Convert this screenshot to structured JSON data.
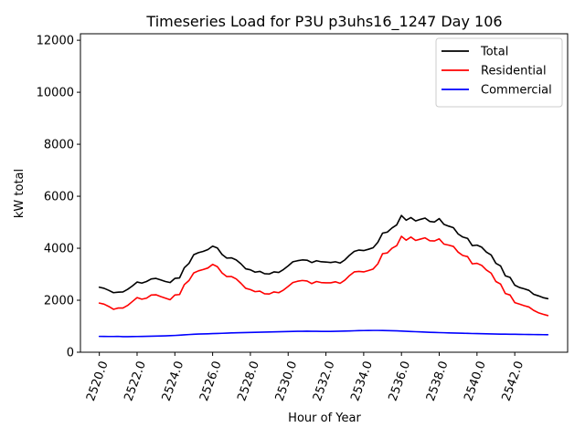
{
  "chart_data": {
    "type": "line",
    "title": "Timeseries Load for P3U p3uhs16_1247  Day 106",
    "xlabel": "Hour of Year",
    "ylabel": "kW total",
    "xlim": [
      2519,
      2544.8
    ],
    "ylim": [
      0,
      12250
    ],
    "xticks": [
      2520,
      2522,
      2524,
      2526,
      2528,
      2530,
      2532,
      2534,
      2536,
      2538,
      2540,
      2542
    ],
    "xtick_labels": [
      "2520.0",
      "2522.0",
      "2524.0",
      "2526.0",
      "2528.0",
      "2530.0",
      "2532.0",
      "2534.0",
      "2536.0",
      "2538.0",
      "2540.0",
      "2542.0"
    ],
    "yticks": [
      0,
      2000,
      4000,
      6000,
      8000,
      10000,
      12000
    ],
    "ytick_labels": [
      "0",
      "2000",
      "4000",
      "6000",
      "8000",
      "10000",
      "12000"
    ],
    "legend_position": "top-right",
    "grid": false,
    "x": [
      2520.0,
      2520.25,
      2520.5,
      2520.75,
      2521.0,
      2521.25,
      2521.5,
      2521.75,
      2522.0,
      2522.25,
      2522.5,
      2522.75,
      2523.0,
      2523.25,
      2523.5,
      2523.75,
      2524.0,
      2524.25,
      2524.5,
      2524.75,
      2525.0,
      2525.25,
      2525.5,
      2525.75,
      2526.0,
      2526.25,
      2526.5,
      2526.75,
      2527.0,
      2527.25,
      2527.5,
      2527.75,
      2528.0,
      2528.25,
      2528.5,
      2528.75,
      2529.0,
      2529.25,
      2529.5,
      2529.75,
      2530.0,
      2530.25,
      2530.5,
      2530.75,
      2531.0,
      2531.25,
      2531.5,
      2531.75,
      2532.0,
      2532.25,
      2532.5,
      2532.75,
      2533.0,
      2533.25,
      2533.5,
      2533.75,
      2534.0,
      2534.25,
      2534.5,
      2534.75,
      2535.0,
      2535.25,
      2535.5,
      2535.75,
      2536.0,
      2536.25,
      2536.5,
      2536.75,
      2537.0,
      2537.25,
      2537.5,
      2537.75,
      2538.0,
      2538.25,
      2538.5,
      2538.75,
      2539.0,
      2539.25,
      2539.5,
      2539.75,
      2540.0,
      2540.25,
      2540.5,
      2540.75,
      2541.0,
      2541.25,
      2541.5,
      2541.75,
      2542.0,
      2542.25,
      2542.5,
      2542.75,
      2543.0,
      2543.25,
      2543.5,
      2543.75
    ],
    "series": [
      {
        "name": "Total",
        "color": "#000000",
        "values": [
          2500,
          2460,
          2380,
          2290,
          2310,
          2320,
          2420,
          2550,
          2700,
          2660,
          2720,
          2820,
          2840,
          2780,
          2720,
          2680,
          2840,
          2860,
          3250,
          3420,
          3750,
          3830,
          3880,
          3950,
          4080,
          4010,
          3760,
          3620,
          3630,
          3550,
          3400,
          3210,
          3170,
          3080,
          3110,
          3020,
          3010,
          3090,
          3070,
          3180,
          3320,
          3480,
          3520,
          3550,
          3540,
          3450,
          3520,
          3480,
          3470,
          3450,
          3480,
          3430,
          3550,
          3730,
          3880,
          3930,
          3910,
          3960,
          4020,
          4230,
          4580,
          4620,
          4780,
          4900,
          5260,
          5080,
          5180,
          5050,
          5110,
          5160,
          5030,
          5010,
          5140,
          4920,
          4850,
          4790,
          4550,
          4430,
          4380,
          4100,
          4120,
          4040,
          3850,
          3740,
          3420,
          3320,
          2940,
          2880,
          2580,
          2490,
          2440,
          2380,
          2230,
          2170,
          2100,
          2060
        ]
      },
      {
        "name": "Residential",
        "color": "#ff0000",
        "values": [
          1890,
          1850,
          1760,
          1650,
          1700,
          1700,
          1800,
          1950,
          2100,
          2040,
          2080,
          2200,
          2210,
          2140,
          2080,
          2020,
          2200,
          2220,
          2600,
          2760,
          3050,
          3130,
          3180,
          3240,
          3380,
          3290,
          3050,
          2910,
          2910,
          2820,
          2650,
          2460,
          2410,
          2330,
          2350,
          2250,
          2240,
          2320,
          2290,
          2390,
          2530,
          2680,
          2730,
          2760,
          2740,
          2640,
          2720,
          2680,
          2670,
          2670,
          2710,
          2650,
          2770,
          2950,
          3090,
          3110,
          3090,
          3140,
          3200,
          3400,
          3790,
          3820,
          4000,
          4100,
          4460,
          4310,
          4430,
          4300,
          4350,
          4400,
          4290,
          4280,
          4360,
          4160,
          4120,
          4070,
          3850,
          3720,
          3680,
          3400,
          3420,
          3340,
          3160,
          3040,
          2720,
          2620,
          2260,
          2200,
          1910,
          1850,
          1790,
          1740,
          1610,
          1520,
          1460,
          1410
        ]
      },
      {
        "name": "Commercial",
        "color": "#0000ff",
        "values": [
          610,
          608,
          605,
          606,
          610,
          598,
          600,
          602,
          605,
          607,
          612,
          615,
          620,
          625,
          630,
          638,
          645,
          655,
          668,
          680,
          690,
          700,
          705,
          710,
          718,
          722,
          728,
          735,
          742,
          748,
          752,
          756,
          760,
          765,
          770,
          774,
          778,
          782,
          788,
          792,
          796,
          800,
          804,
          806,
          808,
          806,
          804,
          802,
          800,
          802,
          806,
          810,
          815,
          820,
          825,
          830,
          834,
          836,
          838,
          838,
          836,
          832,
          828,
          822,
          814,
          806,
          798,
          790,
          782,
          774,
          766,
          760,
          755,
          750,
          745,
          740,
          735,
          730,
          725,
          720,
          716,
          712,
          708,
          704,
          700,
          697,
          694,
          692,
          690,
          687,
          684,
          682,
          680,
          678,
          676,
          674
        ]
      }
    ]
  }
}
